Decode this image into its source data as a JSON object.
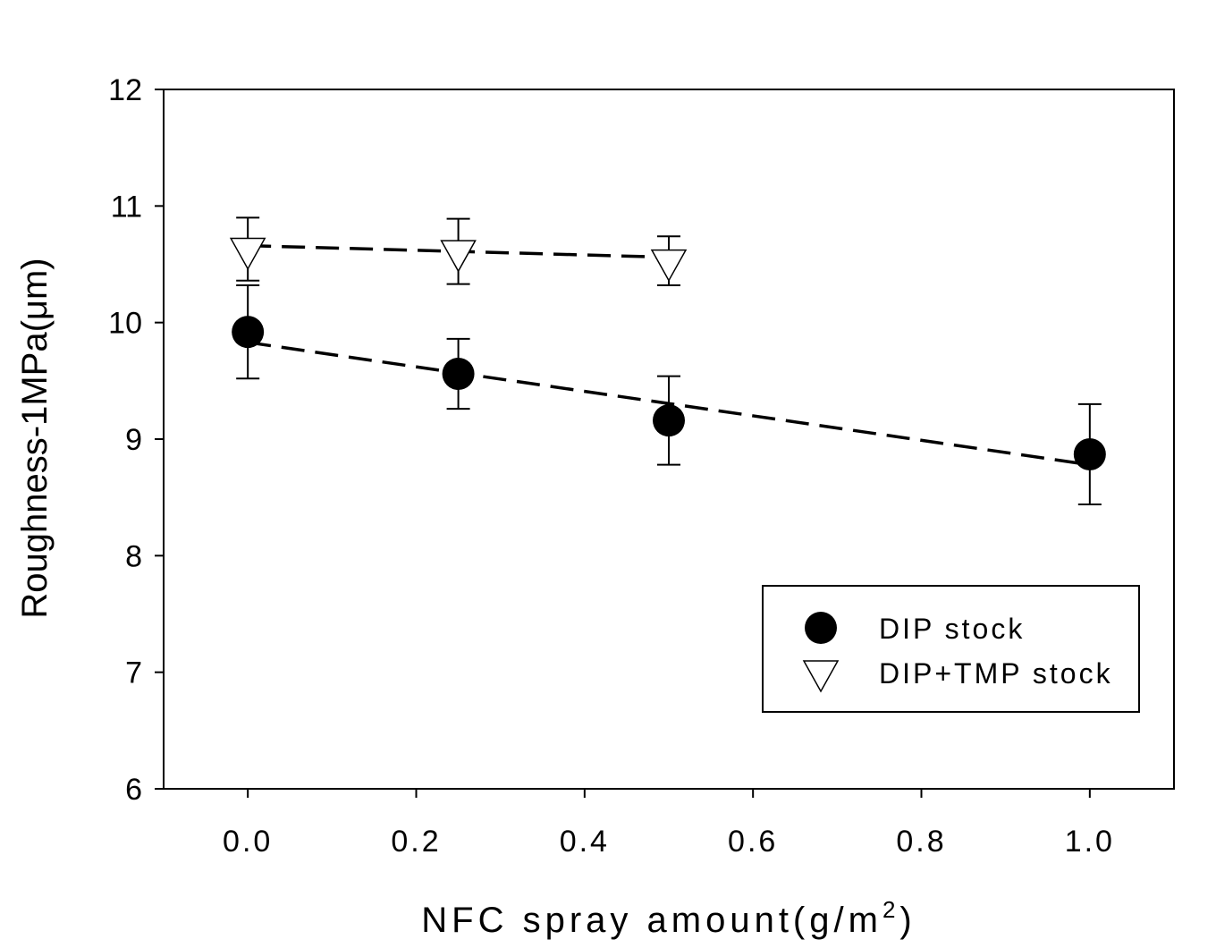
{
  "chart_data": {
    "type": "scatter",
    "xlabel": "NFC spray amount(g/m",
    "xlabel_superscript": "2",
    "xlabel_suffix": ")",
    "ylabel": "Roughness-1MPa(μm)",
    "xlim": [
      -0.1,
      1.1
    ],
    "ylim": [
      6,
      12
    ],
    "xticks": [
      0.0,
      0.2,
      0.4,
      0.6,
      0.8,
      1.0
    ],
    "xtick_labels": [
      "0.0",
      "0.2",
      "0.4",
      "0.6",
      "0.8",
      "1.0"
    ],
    "yticks": [
      6,
      7,
      8,
      9,
      10,
      11,
      12
    ],
    "ytick_labels": [
      "6",
      "7",
      "8",
      "9",
      "10",
      "11",
      "12"
    ],
    "grid": false,
    "legend_position": "bottom-right",
    "series": [
      {
        "name": "DIP stock",
        "marker": "filled-circle",
        "color": "#000000",
        "x": [
          0.0,
          0.25,
          0.5,
          1.0
        ],
        "y": [
          9.92,
          9.56,
          9.16,
          8.87
        ],
        "yerr": [
          0.4,
          0.3,
          0.38,
          0.43
        ],
        "trendline": {
          "style": "dashed",
          "x": [
            0.0,
            1.0
          ],
          "y": [
            9.83,
            8.78
          ]
        }
      },
      {
        "name": "DIP+TMP stock",
        "marker": "open-triangle-down",
        "color": "#000000",
        "x": [
          0.0,
          0.25,
          0.5
        ],
        "y": [
          10.63,
          10.61,
          10.53
        ],
        "yerr": [
          0.27,
          0.28,
          0.21
        ],
        "trendline": {
          "style": "dashed",
          "x": [
            0.0,
            0.5
          ],
          "y": [
            10.66,
            10.56
          ]
        }
      }
    ]
  }
}
